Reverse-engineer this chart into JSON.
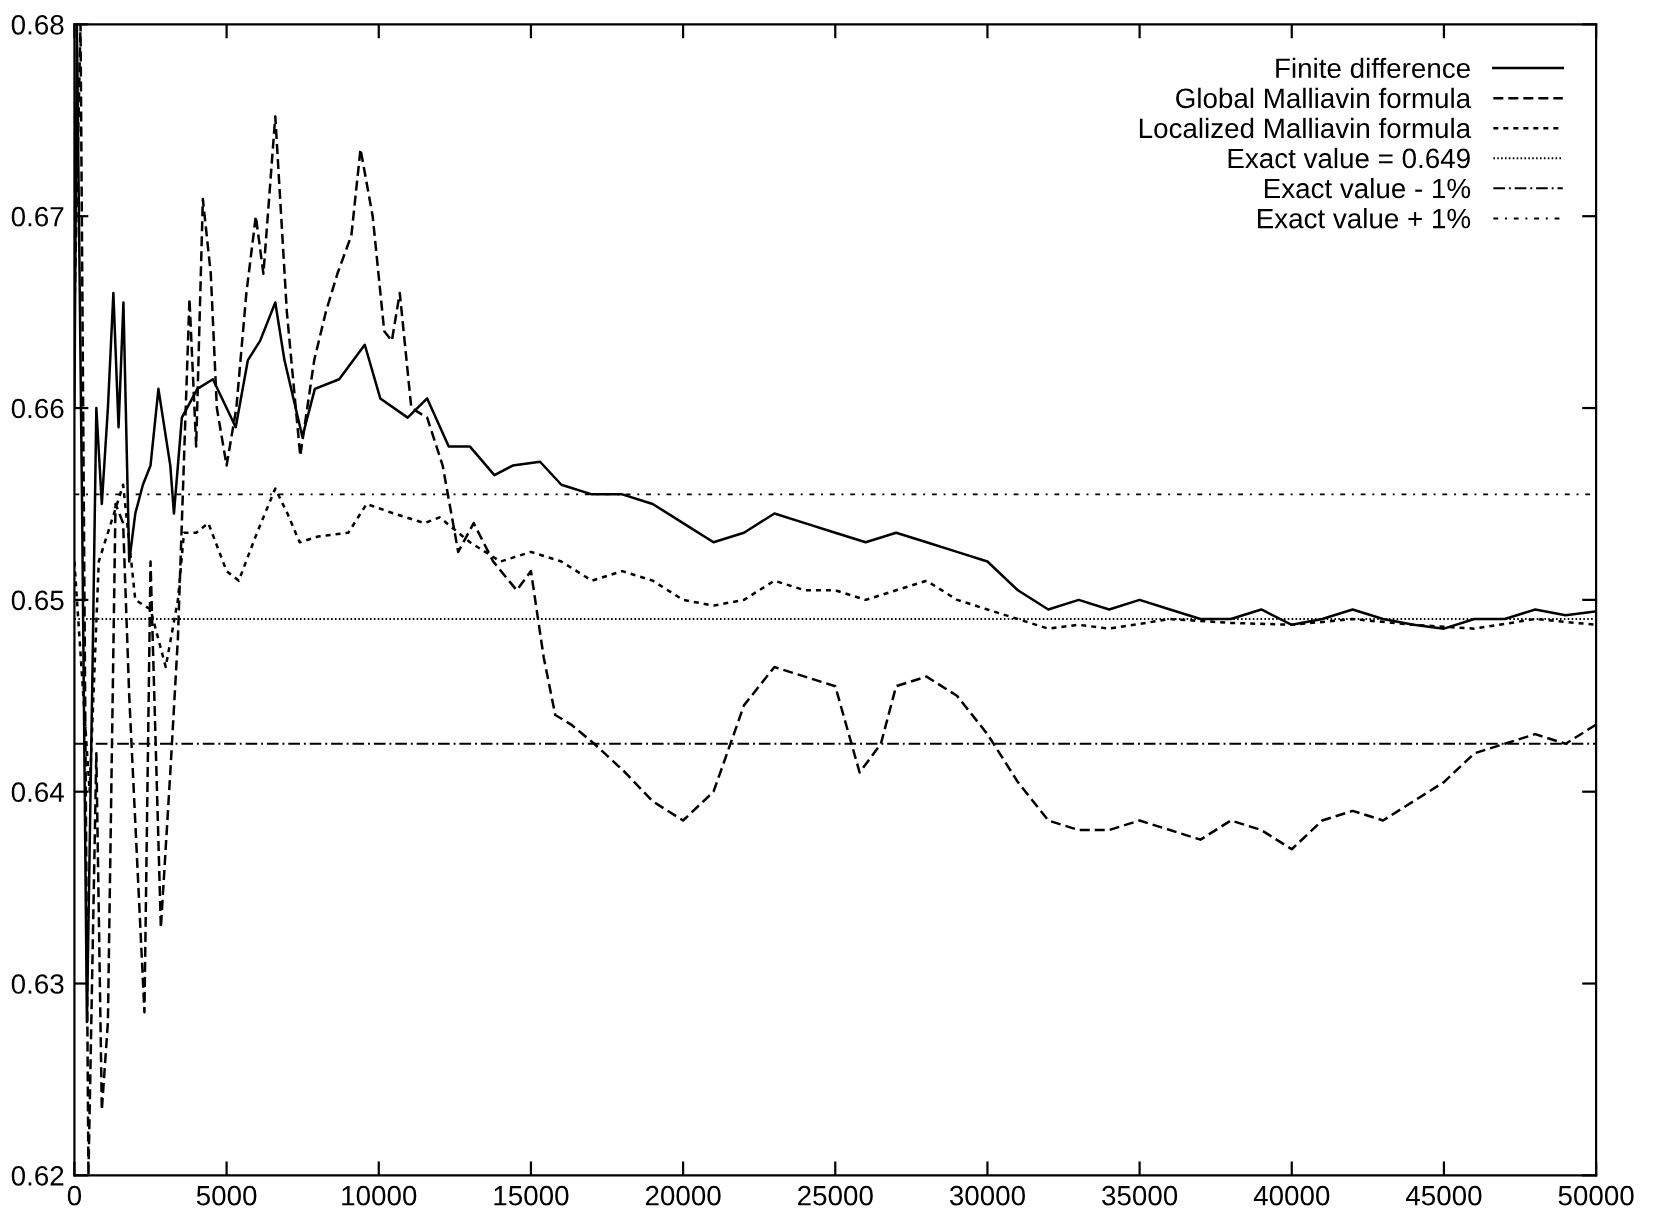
{
  "chart_data": {
    "type": "line",
    "xlim": [
      0,
      50000
    ],
    "ylim": [
      0.62,
      0.68
    ],
    "xticks": [
      0,
      5000,
      10000,
      15000,
      20000,
      25000,
      30000,
      35000,
      40000,
      45000,
      50000
    ],
    "yticks": [
      0.62,
      0.63,
      0.64,
      0.65,
      0.66,
      0.67,
      0.68
    ],
    "grid": false,
    "legend": "top right",
    "series": [
      {
        "name": "Finite difference",
        "color": "#000000",
        "line_style": "solid",
        "x": [
          0,
          80,
          250,
          410,
          590,
          720,
          900,
          1100,
          1280,
          1450,
          1610,
          1800,
          2000,
          2250,
          2500,
          2760,
          3150,
          3270,
          3530,
          4040,
          4550,
          5000,
          5300,
          5700,
          6100,
          6600,
          6900,
          7490,
          7900,
          8700,
          9540,
          10050,
          10950,
          11590,
          12300,
          12990,
          13800,
          14400,
          15300,
          16000,
          17000,
          18000,
          19000,
          20000,
          21000,
          22000,
          23000,
          24000,
          25000,
          26000,
          27000,
          28000,
          29000,
          30000,
          31000,
          32000,
          33000,
          34000,
          35000,
          36000,
          37000,
          38000,
          39000,
          40000,
          41000,
          42000,
          43000,
          44000,
          45000,
          46000,
          47000,
          48000,
          49000,
          50000
        ],
        "values": [
          0.66,
          0.68,
          0.655,
          0.628,
          0.646,
          0.66,
          0.655,
          0.66,
          0.666,
          0.659,
          0.6655,
          0.652,
          0.6545,
          0.656,
          0.657,
          0.661,
          0.657,
          0.6545,
          0.6595,
          0.661,
          0.6615,
          0.66,
          0.659,
          0.6625,
          0.6635,
          0.6655,
          0.6625,
          0.6585,
          0.661,
          0.6615,
          0.6633,
          0.6605,
          0.6595,
          0.6605,
          0.658,
          0.658,
          0.6565,
          0.657,
          0.6572,
          0.656,
          0.6555,
          0.6555,
          0.655,
          0.654,
          0.653,
          0.6535,
          0.6545,
          0.654,
          0.6535,
          0.653,
          0.6535,
          0.653,
          0.6525,
          0.652,
          0.6505,
          0.6495,
          0.65,
          0.6495,
          0.65,
          0.6495,
          0.649,
          0.649,
          0.6495,
          0.6487,
          0.649,
          0.6495,
          0.649,
          0.6487,
          0.6485,
          0.649,
          0.649,
          0.6495,
          0.6492,
          0.6494
        ]
      },
      {
        "name": "Global Malliavin formula",
        "color": "#000000",
        "line_style": "dashed",
        "x": [
          0,
          200,
          460,
          720,
          900,
          1100,
          1350,
          1600,
          1800,
          2300,
          2500,
          2840,
          3150,
          3400,
          3780,
          4000,
          4220,
          4480,
          4680,
          5000,
          5320,
          5650,
          5960,
          6210,
          6600,
          6980,
          7420,
          7880,
          8260,
          8640,
          9100,
          9400,
          9800,
          10180,
          10430,
          10690,
          11070,
          11590,
          12100,
          12610,
          13120,
          13760,
          14530,
          15000,
          15420,
          15800,
          16320,
          17080,
          18100,
          19000,
          20000,
          21000,
          22000,
          23000,
          24000,
          25000,
          25800,
          26500,
          27000,
          28000,
          29000,
          30000,
          31000,
          32000,
          33000,
          34000,
          35000,
          36000,
          37000,
          38000,
          39000,
          40000,
          41000,
          42000,
          43000,
          44000,
          45000,
          46000,
          47000,
          48000,
          49000,
          50000
        ],
        "values": [
          0.665,
          0.68,
          0.62,
          0.642,
          0.6234,
          0.628,
          0.655,
          0.654,
          0.645,
          0.6285,
          0.652,
          0.6329,
          0.641,
          0.648,
          0.6657,
          0.658,
          0.6709,
          0.667,
          0.66,
          0.657,
          0.66,
          0.666,
          0.67,
          0.667,
          0.6752,
          0.665,
          0.6575,
          0.6625,
          0.665,
          0.667,
          0.669,
          0.6735,
          0.67,
          0.664,
          0.6635,
          0.666,
          0.66,
          0.6595,
          0.657,
          0.6525,
          0.654,
          0.652,
          0.6505,
          0.6515,
          0.647,
          0.644,
          0.6435,
          0.6425,
          0.641,
          0.6395,
          0.6385,
          0.64,
          0.6445,
          0.6465,
          0.646,
          0.6455,
          0.641,
          0.6425,
          0.6455,
          0.646,
          0.645,
          0.643,
          0.6405,
          0.6385,
          0.638,
          0.638,
          0.6385,
          0.638,
          0.6375,
          0.6385,
          0.638,
          0.637,
          0.6385,
          0.639,
          0.6385,
          0.6395,
          0.6405,
          0.642,
          0.6425,
          0.643,
          0.6425,
          0.6435
        ]
      },
      {
        "name": "Localized Malliavin formula",
        "color": "#000000",
        "line_style": "dotted",
        "x": [
          0,
          500,
          800,
          1200,
          1600,
          2000,
          2500,
          3000,
          3400,
          3600,
          4000,
          4400,
          5000,
          5400,
          6000,
          6600,
          7000,
          7400,
          8000,
          9000,
          9600,
          10500,
          11500,
          12000,
          13000,
          14000,
          15000,
          16000,
          17000,
          18000,
          19000,
          20000,
          21000,
          22000,
          23000,
          24000,
          25000,
          26000,
          27000,
          28000,
          29000,
          30000,
          31000,
          32000,
          33000,
          34000,
          36000,
          38000,
          40000,
          42000,
          44000,
          46000,
          48000,
          50000
        ],
        "values": [
          0.652,
          0.64,
          0.652,
          0.654,
          0.656,
          0.65,
          0.6495,
          0.6465,
          0.65,
          0.6535,
          0.6535,
          0.654,
          0.6515,
          0.651,
          0.6535,
          0.6558,
          0.6545,
          0.653,
          0.6533,
          0.6535,
          0.655,
          0.6545,
          0.654,
          0.6543,
          0.653,
          0.652,
          0.6525,
          0.652,
          0.651,
          0.6515,
          0.651,
          0.65,
          0.6497,
          0.65,
          0.651,
          0.6505,
          0.6505,
          0.65,
          0.6505,
          0.651,
          0.65,
          0.6495,
          0.649,
          0.6485,
          0.6487,
          0.6485,
          0.649,
          0.6488,
          0.6487,
          0.649,
          0.6487,
          0.6485,
          0.649,
          0.6487
        ]
      },
      {
        "name": "Exact value = 0.649",
        "color": "#000000",
        "line_style": "dotted",
        "x": [
          0,
          50000
        ],
        "values": [
          0.649,
          0.649
        ]
      },
      {
        "name": "Exact value - 1%",
        "color": "#000000",
        "line_style": "dashdot",
        "x": [
          0,
          50000
        ],
        "values": [
          0.6425,
          0.6425
        ]
      },
      {
        "name": "Exact value + 1%",
        "color": "#000000",
        "line_style": "dashdot",
        "x": [
          0,
          50000
        ],
        "values": [
          0.6555,
          0.6555
        ]
      }
    ]
  }
}
